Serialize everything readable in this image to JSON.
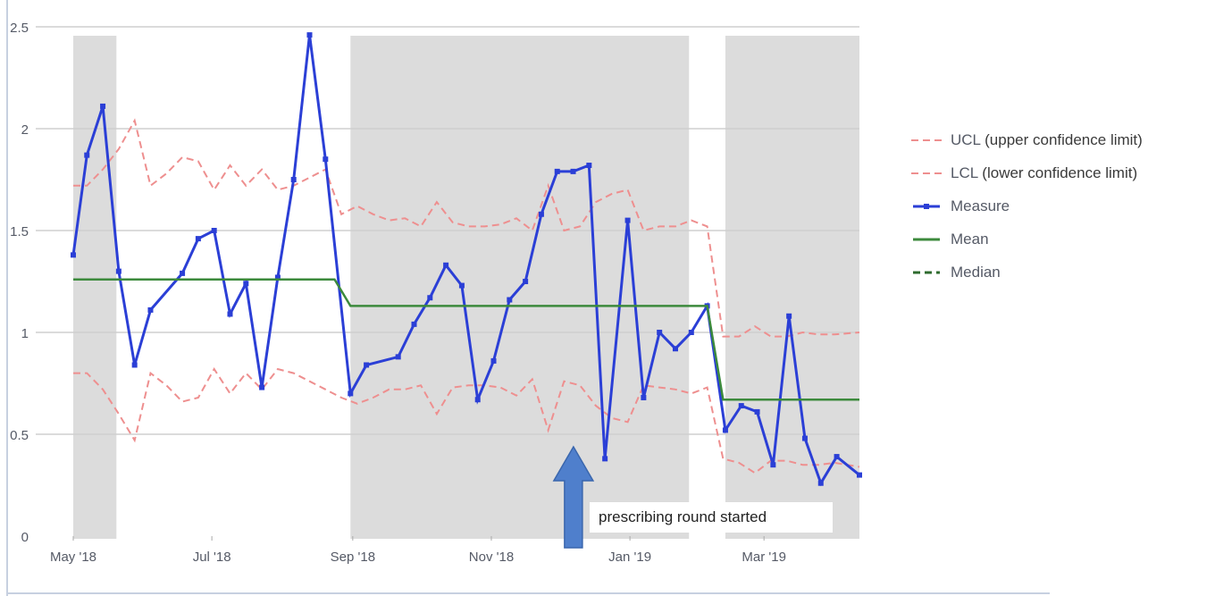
{
  "chart_data": {
    "type": "line",
    "title": "",
    "xlabel": "",
    "ylabel": "",
    "ylim": [
      0,
      2.5
    ],
    "yticks": [
      "0",
      "0.5",
      "1",
      "1.5",
      "2",
      "2.5"
    ],
    "xticks": [
      {
        "label": "May '18",
        "date": "2018-05-01"
      },
      {
        "label": "Jul '18",
        "date": "2018-07-01"
      },
      {
        "label": "Sep '18",
        "date": "2018-09-01"
      },
      {
        "label": "Nov '18",
        "date": "2018-11-01"
      },
      {
        "label": "Jan '19",
        "date": "2019-01-01"
      },
      {
        "label": "Mar '19",
        "date": "2019-03-01"
      }
    ],
    "shaded_periods": [
      {
        "start": "2018-05-01",
        "end": "2018-05-20"
      },
      {
        "start": "2018-08-31",
        "end": "2019-01-27"
      },
      {
        "start": "2019-02-12",
        "end": "2019-04-12"
      }
    ],
    "grid": true,
    "legend_position": "right",
    "series": [
      {
        "name": "UCL",
        "style": "dashed",
        "color": "#ee8f8f",
        "points": [
          [
            "2018-05-01",
            1.72
          ],
          [
            "2018-05-07",
            1.72
          ],
          [
            "2018-05-14",
            1.8
          ],
          [
            "2018-05-21",
            1.9
          ],
          [
            "2018-05-28",
            2.04
          ],
          [
            "2018-06-04",
            1.72
          ],
          [
            "2018-06-11",
            1.78
          ],
          [
            "2018-06-18",
            1.86
          ],
          [
            "2018-06-25",
            1.84
          ],
          [
            "2018-07-02",
            1.7
          ],
          [
            "2018-07-09",
            1.82
          ],
          [
            "2018-07-16",
            1.72
          ],
          [
            "2018-07-23",
            1.8
          ],
          [
            "2018-07-30",
            1.7
          ],
          [
            "2018-08-06",
            1.72
          ],
          [
            "2018-08-13",
            1.76
          ],
          [
            "2018-08-20",
            1.8
          ],
          [
            "2018-08-27",
            1.58
          ],
          [
            "2018-09-03",
            1.62
          ],
          [
            "2018-09-10",
            1.58
          ],
          [
            "2018-09-17",
            1.55
          ],
          [
            "2018-09-24",
            1.56
          ],
          [
            "2018-10-01",
            1.52
          ],
          [
            "2018-10-08",
            1.64
          ],
          [
            "2018-10-15",
            1.54
          ],
          [
            "2018-10-22",
            1.52
          ],
          [
            "2018-10-29",
            1.52
          ],
          [
            "2018-11-05",
            1.53
          ],
          [
            "2018-11-12",
            1.56
          ],
          [
            "2018-11-19",
            1.5
          ],
          [
            "2018-11-26",
            1.72
          ],
          [
            "2018-12-03",
            1.5
          ],
          [
            "2018-12-10",
            1.52
          ],
          [
            "2018-12-17",
            1.64
          ],
          [
            "2018-12-24",
            1.68
          ],
          [
            "2018-12-31",
            1.7
          ],
          [
            "2019-01-07",
            1.5
          ],
          [
            "2019-01-14",
            1.52
          ],
          [
            "2019-01-21",
            1.52
          ],
          [
            "2019-01-28",
            1.55
          ],
          [
            "2019-02-04",
            1.52
          ],
          [
            "2019-02-11",
            0.98
          ],
          [
            "2019-02-18",
            0.98
          ],
          [
            "2019-02-25",
            1.03
          ],
          [
            "2019-03-04",
            0.98
          ],
          [
            "2019-03-11",
            0.98
          ],
          [
            "2019-03-18",
            1.0
          ],
          [
            "2019-03-25",
            0.99
          ],
          [
            "2019-04-01",
            0.99
          ],
          [
            "2019-04-12",
            1.0
          ]
        ]
      },
      {
        "name": "LCL",
        "style": "dashed",
        "color": "#ee8f8f",
        "points": [
          [
            "2018-05-01",
            0.8
          ],
          [
            "2018-05-07",
            0.8
          ],
          [
            "2018-05-14",
            0.72
          ],
          [
            "2018-05-21",
            0.6
          ],
          [
            "2018-05-28",
            0.47
          ],
          [
            "2018-06-04",
            0.8
          ],
          [
            "2018-06-11",
            0.74
          ],
          [
            "2018-06-18",
            0.66
          ],
          [
            "2018-06-25",
            0.68
          ],
          [
            "2018-07-02",
            0.82
          ],
          [
            "2018-07-09",
            0.7
          ],
          [
            "2018-07-16",
            0.8
          ],
          [
            "2018-07-23",
            0.72
          ],
          [
            "2018-07-30",
            0.82
          ],
          [
            "2018-08-06",
            0.8
          ],
          [
            "2018-08-13",
            0.76
          ],
          [
            "2018-08-20",
            0.72
          ],
          [
            "2018-08-27",
            0.68
          ],
          [
            "2018-09-03",
            0.65
          ],
          [
            "2018-09-10",
            0.68
          ],
          [
            "2018-09-17",
            0.72
          ],
          [
            "2018-09-24",
            0.72
          ],
          [
            "2018-10-01",
            0.74
          ],
          [
            "2018-10-08",
            0.6
          ],
          [
            "2018-10-15",
            0.73
          ],
          [
            "2018-10-22",
            0.74
          ],
          [
            "2018-10-29",
            0.74
          ],
          [
            "2018-11-05",
            0.73
          ],
          [
            "2018-11-12",
            0.69
          ],
          [
            "2018-11-19",
            0.77
          ],
          [
            "2018-11-26",
            0.52
          ],
          [
            "2018-12-03",
            0.76
          ],
          [
            "2018-12-10",
            0.74
          ],
          [
            "2018-12-17",
            0.64
          ],
          [
            "2018-12-24",
            0.58
          ],
          [
            "2018-12-31",
            0.56
          ],
          [
            "2019-01-07",
            0.74
          ],
          [
            "2019-01-14",
            0.73
          ],
          [
            "2019-01-21",
            0.72
          ],
          [
            "2019-01-28",
            0.7
          ],
          [
            "2019-02-04",
            0.73
          ],
          [
            "2019-02-11",
            0.38
          ],
          [
            "2019-02-18",
            0.36
          ],
          [
            "2019-02-25",
            0.31
          ],
          [
            "2019-03-04",
            0.37
          ],
          [
            "2019-03-11",
            0.37
          ],
          [
            "2019-03-18",
            0.35
          ],
          [
            "2019-03-25",
            0.35
          ],
          [
            "2019-04-01",
            0.36
          ],
          [
            "2019-04-12",
            0.34
          ]
        ]
      },
      {
        "name": "Measure",
        "style": "markers",
        "color": "#2b3fd6",
        "points": [
          [
            "2018-05-01",
            1.38
          ],
          [
            "2018-05-07",
            1.87
          ],
          [
            "2018-05-14",
            2.11
          ],
          [
            "2018-05-21",
            1.3
          ],
          [
            "2018-05-28",
            0.84
          ],
          [
            "2018-06-04",
            1.11
          ],
          [
            "2018-06-18",
            1.29
          ],
          [
            "2018-06-25",
            1.46
          ],
          [
            "2018-07-02",
            1.5
          ],
          [
            "2018-07-09",
            1.09
          ],
          [
            "2018-07-16",
            1.24
          ],
          [
            "2018-07-23",
            0.73
          ],
          [
            "2018-07-30",
            1.27
          ],
          [
            "2018-08-06",
            1.75
          ],
          [
            "2018-08-13",
            2.46
          ],
          [
            "2018-08-20",
            1.85
          ],
          [
            "2018-08-31",
            0.7
          ],
          [
            "2018-09-07",
            0.84
          ],
          [
            "2018-09-21",
            0.88
          ],
          [
            "2018-09-28",
            1.04
          ],
          [
            "2018-10-05",
            1.17
          ],
          [
            "2018-10-12",
            1.33
          ],
          [
            "2018-10-19",
            1.23
          ],
          [
            "2018-10-26",
            0.67
          ],
          [
            "2018-11-02",
            0.86
          ],
          [
            "2018-11-09",
            1.16
          ],
          [
            "2018-11-16",
            1.25
          ],
          [
            "2018-11-23",
            1.58
          ],
          [
            "2018-11-30",
            1.79
          ],
          [
            "2018-12-07",
            1.79
          ],
          [
            "2018-12-14",
            1.82
          ],
          [
            "2018-12-21",
            0.38
          ],
          [
            "2018-12-31",
            1.55
          ],
          [
            "2019-01-07",
            0.68
          ],
          [
            "2019-01-14",
            1.0
          ],
          [
            "2019-01-21",
            0.92
          ],
          [
            "2019-01-28",
            1.0
          ],
          [
            "2019-02-04",
            1.13
          ],
          [
            "2019-02-12",
            0.52
          ],
          [
            "2019-02-19",
            0.64
          ],
          [
            "2019-02-26",
            0.61
          ],
          [
            "2019-03-05",
            0.35
          ],
          [
            "2019-03-12",
            1.08
          ],
          [
            "2019-03-19",
            0.48
          ],
          [
            "2019-03-26",
            0.26
          ],
          [
            "2019-04-02",
            0.39
          ],
          [
            "2019-04-12",
            0.3
          ]
        ]
      },
      {
        "name": "Mean",
        "style": "solid",
        "color": "#3c8a3c",
        "points": [
          [
            "2018-05-01",
            1.26
          ],
          [
            "2018-08-24",
            1.26
          ],
          [
            "2018-08-31",
            1.13
          ],
          [
            "2019-02-04",
            1.13
          ],
          [
            "2019-02-11",
            0.67
          ],
          [
            "2019-04-12",
            0.67
          ]
        ]
      },
      {
        "name": "Median",
        "style": "dashed",
        "color": "#2e6b2e",
        "points": []
      }
    ],
    "annotations": [
      {
        "text": "prescribing round started",
        "date": "2018-12-15",
        "arrow": "up"
      }
    ]
  },
  "legend": {
    "items": [
      {
        "key": "ucl",
        "label": "UCL",
        "extra": "(upper confidence limit)"
      },
      {
        "key": "lcl",
        "label": "LCL",
        "extra": "(lower confidence limit)"
      },
      {
        "key": "measure",
        "label": "Measure",
        "extra": ""
      },
      {
        "key": "mean",
        "label": "Mean",
        "extra": ""
      },
      {
        "key": "median",
        "label": "Median",
        "extra": ""
      }
    ]
  }
}
